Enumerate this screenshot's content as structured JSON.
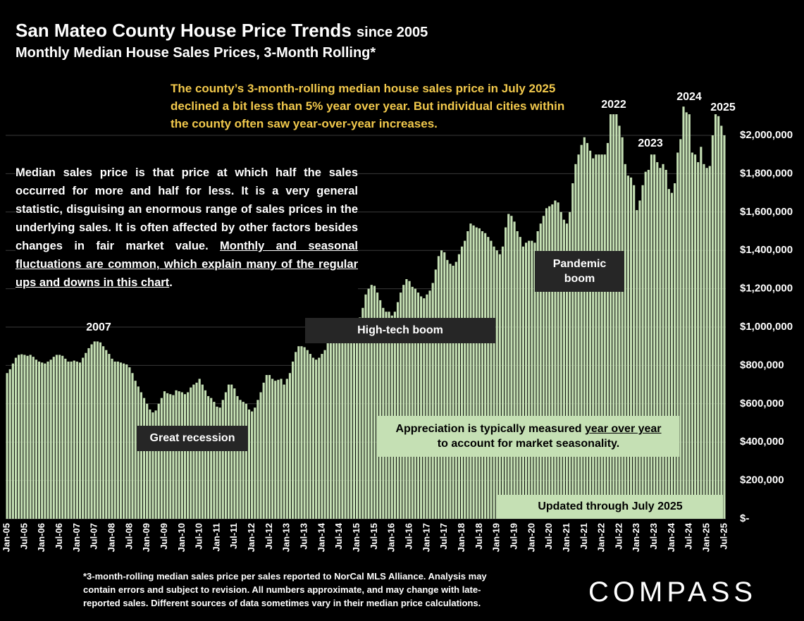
{
  "chart_data": {
    "type": "bar",
    "title": "San Mateo County House Price Trends",
    "title_suffix": "since 2005",
    "subtitle": "Monthly Median House Sales Prices, 3-Month Rolling*",
    "color": "#c5e0b4",
    "grid": true,
    "ylim": [
      0,
      2200000
    ],
    "yticks": [
      {
        "value": 0,
        "label": "$-"
      },
      {
        "value": 200000,
        "label": "$200,000"
      },
      {
        "value": 400000,
        "label": "$400,000"
      },
      {
        "value": 600000,
        "label": "$600,000"
      },
      {
        "value": 800000,
        "label": "$800,000"
      },
      {
        "value": 1000000,
        "label": "$1,000,000"
      },
      {
        "value": 1200000,
        "label": "$1,200,000"
      },
      {
        "value": 1400000,
        "label": "$1,400,000"
      },
      {
        "value": 1600000,
        "label": "$1,600,000"
      },
      {
        "value": 1800000,
        "label": "$1,800,000"
      },
      {
        "value": 2000000,
        "label": "$2,000,000"
      }
    ],
    "categories": [
      "Jan-05",
      null,
      null,
      null,
      null,
      null,
      "Jul-05",
      null,
      null,
      null,
      null,
      null,
      "Jan-06",
      null,
      null,
      null,
      null,
      null,
      "Jul-06",
      null,
      null,
      null,
      null,
      null,
      "Jan-07",
      null,
      null,
      null,
      null,
      null,
      "Jul-07",
      null,
      null,
      null,
      null,
      null,
      "Jan-08",
      null,
      null,
      null,
      null,
      null,
      "Jul-08",
      null,
      null,
      null,
      null,
      null,
      "Jan-09",
      null,
      null,
      null,
      null,
      null,
      "Jul-09",
      null,
      null,
      null,
      null,
      null,
      "Jan-10",
      null,
      null,
      null,
      null,
      null,
      "Jul-10",
      null,
      null,
      null,
      null,
      null,
      "Jan-11",
      null,
      null,
      null,
      null,
      null,
      "Jul-11",
      null,
      null,
      null,
      null,
      null,
      "Jan-12",
      null,
      null,
      null,
      null,
      null,
      "Jul-12",
      null,
      null,
      null,
      null,
      null,
      "Jan-13",
      null,
      null,
      null,
      null,
      null,
      "Jul-13",
      null,
      null,
      null,
      null,
      null,
      "Jan-14",
      null,
      null,
      null,
      null,
      null,
      "Jul-14",
      null,
      null,
      null,
      null,
      null,
      "Jan-15",
      null,
      null,
      null,
      null,
      null,
      "Jul-15",
      null,
      null,
      null,
      null,
      null,
      "Jan-16",
      null,
      null,
      null,
      null,
      null,
      "Jul-16",
      null,
      null,
      null,
      null,
      null,
      "Jan-17",
      null,
      null,
      null,
      null,
      null,
      "Jul-17",
      null,
      null,
      null,
      null,
      null,
      "Jan-18",
      null,
      null,
      null,
      null,
      null,
      "Jul-18",
      null,
      null,
      null,
      null,
      null,
      "Jan-19",
      null,
      null,
      null,
      null,
      null,
      "Jul-19",
      null,
      null,
      null,
      null,
      null,
      "Jan-20",
      null,
      null,
      null,
      null,
      null,
      "Jul-20",
      null,
      null,
      null,
      null,
      null,
      "Jan-21",
      null,
      null,
      null,
      null,
      null,
      "Jul-21",
      null,
      null,
      null,
      null,
      null,
      "Jan-22",
      null,
      null,
      null,
      null,
      null,
      "Jul-22",
      null,
      null,
      null,
      null,
      null,
      "Jan-23",
      null,
      null,
      null,
      null,
      null,
      "Jul-23",
      null,
      null,
      null,
      null,
      null,
      "Jan-24",
      null,
      null,
      null,
      null,
      null,
      "Jul-24",
      null,
      null,
      null,
      null,
      null,
      "Jan-25",
      null,
      null,
      null,
      null,
      null,
      "Jul-25"
    ],
    "values": [
      760000,
      780000,
      810000,
      840000,
      855000,
      858000,
      855000,
      850000,
      855000,
      845000,
      830000,
      820000,
      815000,
      810000,
      820000,
      830000,
      845000,
      855000,
      855000,
      850000,
      835000,
      820000,
      820000,
      825000,
      820000,
      815000,
      840000,
      865000,
      890000,
      910000,
      925000,
      925000,
      920000,
      900000,
      880000,
      860000,
      835000,
      820000,
      820000,
      815000,
      810000,
      805000,
      790000,
      760000,
      720000,
      690000,
      660000,
      630000,
      600000,
      570000,
      555000,
      565000,
      600000,
      630000,
      665000,
      655000,
      650000,
      645000,
      670000,
      665000,
      660000,
      650000,
      660000,
      685000,
      700000,
      710000,
      730000,
      700000,
      670000,
      640000,
      630000,
      610000,
      585000,
      580000,
      620000,
      660000,
      700000,
      700000,
      680000,
      640000,
      620000,
      610000,
      600000,
      570000,
      560000,
      580000,
      620000,
      660000,
      710000,
      750000,
      750000,
      730000,
      720000,
      725000,
      730000,
      700000,
      730000,
      760000,
      820000,
      870000,
      900000,
      900000,
      895000,
      880000,
      860000,
      840000,
      830000,
      840000,
      860000,
      880000,
      920000,
      960000,
      1000000,
      1000000,
      980000,
      960000,
      950000,
      960000,
      990000,
      1030000,
      1000000,
      1050000,
      1100000,
      1170000,
      1200000,
      1220000,
      1215000,
      1180000,
      1140000,
      1100000,
      1080000,
      1080000,
      1060000,
      1080000,
      1130000,
      1180000,
      1220000,
      1250000,
      1240000,
      1210000,
      1200000,
      1180000,
      1160000,
      1150000,
      1170000,
      1190000,
      1230000,
      1300000,
      1370000,
      1400000,
      1390000,
      1350000,
      1330000,
      1320000,
      1340000,
      1380000,
      1420000,
      1450000,
      1500000,
      1540000,
      1530000,
      1520000,
      1515000,
      1500000,
      1490000,
      1470000,
      1450000,
      1420000,
      1400000,
      1380000,
      1420000,
      1520000,
      1590000,
      1580000,
      1550000,
      1500000,
      1470000,
      1420000,
      1440000,
      1450000,
      1450000,
      1440000,
      1500000,
      1540000,
      1580000,
      1620000,
      1630000,
      1640000,
      1660000,
      1650000,
      1600000,
      1560000,
      1540000,
      1600000,
      1750000,
      1850000,
      1900000,
      1950000,
      1990000,
      1960000,
      1920000,
      1880000,
      1900000,
      1900000,
      1900000,
      1900000,
      1960000,
      2110000,
      2110000,
      2110000,
      2050000,
      1990000,
      1850000,
      1790000,
      1780000,
      1740000,
      1610000,
      1660000,
      1740000,
      1810000,
      1820000,
      1900000,
      1900000,
      1860000,
      1830000,
      1850000,
      1820000,
      1720000,
      1700000,
      1750000,
      1910000,
      1980000,
      2150000,
      2120000,
      2110000,
      1910000,
      1900000,
      1860000,
      1940000,
      1850000,
      1830000,
      1840000,
      2000000,
      2110000,
      2100000,
      2050000,
      2000000
    ],
    "annotations": {
      "yellow_note": "The county’s 3-month-rolling median house sales price in July 2025 declined a bit less than 5% year over year. But individual cities within the county often saw year-over-year increases.",
      "median_note": {
        "text": "Median sales price is that price at which half the sales occurred for more and half for less. It is a very general statistic, disguising an enormous range of sales prices in the underlying sales. It is often affected by other factors besides changes in fair market value.",
        "underlined": "Monthly and seasonal fluctuations are common, which explain many of the regular ups and downs in this chart",
        "end": "."
      },
      "years": [
        "2007",
        "2022",
        "2023",
        "2024",
        "2025"
      ],
      "great_recession": "Great recession",
      "high_tech": "High-tech boom",
      "pandemic": "Pandemic boom",
      "appreciation": {
        "text": "Appreciation is typically measured",
        "underlined": "year over year",
        "end": "to account for market seasonality."
      },
      "updated": "Updated through July 2025"
    },
    "footnote": "*3-month-rolling median sales price per sales reported to NorCal MLS Alliance. Analysis may contain errors and subject to revision. All numbers approximate, and may change with late-reported sales. Different sources of data sometimes vary in their median price calculations.",
    "logo": "COMPASS"
  }
}
